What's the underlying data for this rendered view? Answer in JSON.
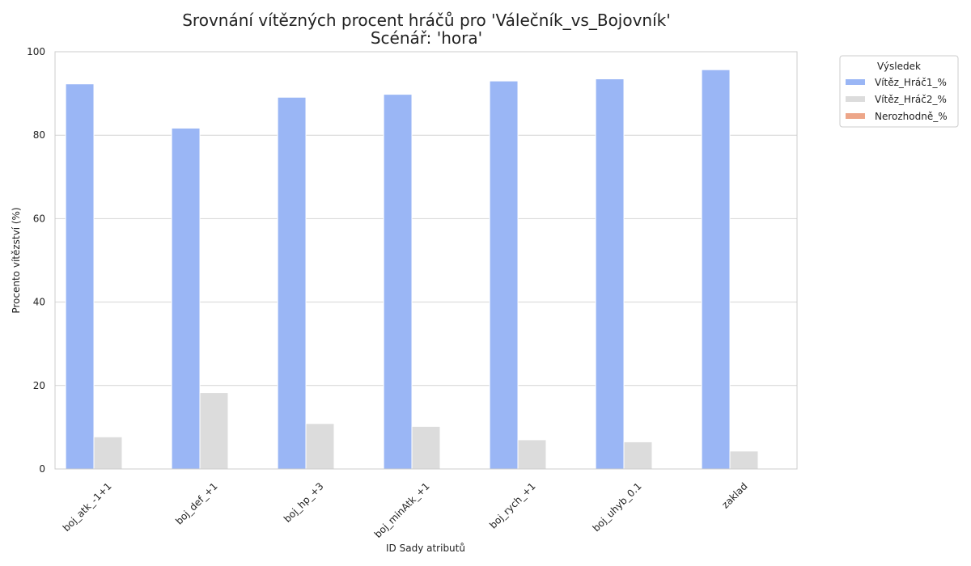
{
  "chart_data": {
    "type": "bar",
    "title": "Srovnání vítězných procent hráčů pro 'Válečník_vs_Bojovník'",
    "subtitle": "Scénář: 'hora'",
    "xlabel": "ID Sady atributů",
    "ylabel": "Procento vítězství (%)",
    "ylim": [
      0,
      100
    ],
    "yticks": [
      0,
      20,
      40,
      60,
      80,
      100
    ],
    "grid": true,
    "categories": [
      "boj_atk_-1+1",
      "boj_def_+1",
      "boj_hp_+3",
      "boj_minAtk_+1",
      "boj_rych_+1",
      "boj_uhyb_0.1",
      "zaklad"
    ],
    "series": [
      {
        "name": "Vítěz_Hráč1_%",
        "color": "#9ab6f5",
        "values": [
          92.3,
          81.7,
          89.1,
          89.8,
          93.0,
          93.5,
          95.7
        ]
      },
      {
        "name": "Vítěz_Hráč2_%",
        "color": "#dcdcdc",
        "values": [
          7.7,
          18.3,
          10.9,
          10.2,
          7.0,
          6.5,
          4.3
        ]
      },
      {
        "name": "Nerozhodně_%",
        "color": "#eda689",
        "values": [
          0,
          0,
          0,
          0,
          0,
          0,
          0
        ]
      }
    ],
    "legend": {
      "title": "Výsledek",
      "placement": "outside-top-right"
    }
  }
}
